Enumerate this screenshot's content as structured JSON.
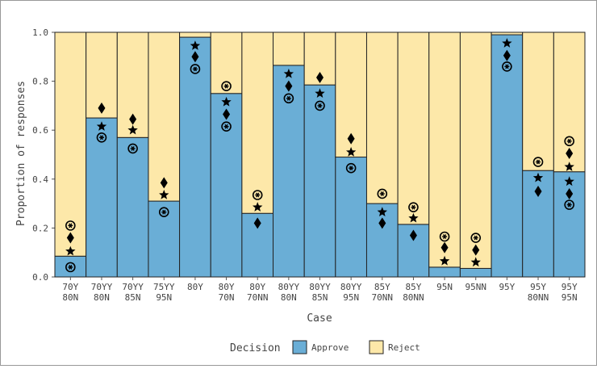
{
  "chart_data": {
    "type": "stacked_bar",
    "y_label": "Proportion of responses",
    "x_label": "Case",
    "legend_title": "Decision",
    "categories": [
      [
        "70Y",
        "80N"
      ],
      [
        "70YY",
        "80N"
      ],
      [
        "70YY",
        "85N"
      ],
      [
        "75YY",
        "95N"
      ],
      [
        "80Y"
      ],
      [
        "80Y",
        "70N"
      ],
      [
        "80Y",
        "70NN"
      ],
      [
        "80YY",
        "80N"
      ],
      [
        "80YY",
        "85N"
      ],
      [
        "80YY",
        "95N"
      ],
      [
        "85Y",
        "70NN"
      ],
      [
        "85Y",
        "80NN"
      ],
      [
        "95N"
      ],
      [
        "95NN"
      ],
      [
        "95Y"
      ],
      [
        "95Y",
        "80NN"
      ],
      [
        "95Y",
        "95N"
      ]
    ],
    "series": [
      {
        "name": "Approve",
        "color": "#6aaed6",
        "values": [
          0.085,
          0.65,
          0.57,
          0.31,
          0.98,
          0.75,
          0.26,
          0.865,
          0.785,
          0.49,
          0.3,
          0.215,
          0.04,
          0.035,
          0.99,
          0.435,
          0.43
        ]
      },
      {
        "name": "Reject",
        "color": "#fde8a9",
        "values": [
          0.915,
          0.35,
          0.43,
          0.69,
          0.02,
          0.25,
          0.74,
          0.135,
          0.215,
          0.51,
          0.7,
          0.785,
          0.96,
          0.965,
          0.01,
          0.565,
          0.57
        ]
      }
    ],
    "markers": [
      {
        "shape": "star",
        "values": [
          [
            0.105
          ],
          [
            0.615
          ],
          [
            0.6
          ],
          [
            0.335
          ],
          [
            0.945
          ],
          [
            0.715
          ],
          [
            0.285
          ],
          [
            0.83
          ],
          [
            0.75
          ],
          [
            0.51
          ],
          [
            0.265
          ],
          [
            0.24
          ],
          [
            0.065
          ],
          [
            0.06
          ],
          [
            0.955
          ],
          [
            0.405
          ],
          [
            0.45,
            0.39
          ]
        ]
      },
      {
        "shape": "diamond",
        "values": [
          [
            0.16
          ],
          [
            0.69
          ],
          [
            0.645
          ],
          [
            0.385
          ],
          [
            0.9
          ],
          [
            0.665
          ],
          [
            0.22
          ],
          [
            0.78
          ],
          [
            0.815
          ],
          [
            0.565
          ],
          [
            0.22
          ],
          [
            0.17
          ],
          [
            0.12
          ],
          [
            0.11
          ],
          [
            0.905
          ],
          [
            0.35
          ],
          [
            0.505,
            0.34
          ]
        ]
      },
      {
        "shape": "circle",
        "values": [
          [
            0.04,
            0.21
          ],
          [
            0.57
          ],
          [
            0.525
          ],
          [
            0.265
          ],
          [
            0.85
          ],
          [
            0.78,
            0.615
          ],
          [
            0.335
          ],
          [
            0.73
          ],
          [
            0.7
          ],
          [
            0.445
          ],
          [
            0.34
          ],
          [
            0.285
          ],
          [
            0.165
          ],
          [
            0.16
          ],
          [
            0.86
          ],
          [
            0.47
          ],
          [
            0.555,
            0.295
          ]
        ]
      }
    ],
    "ylim": [
      0,
      1
    ],
    "yticks": [
      {
        "value": 0,
        "label": "0.0"
      },
      0.2,
      0.4,
      0.6,
      0.8,
      {
        "value": 1,
        "label": "1.0"
      }
    ]
  }
}
